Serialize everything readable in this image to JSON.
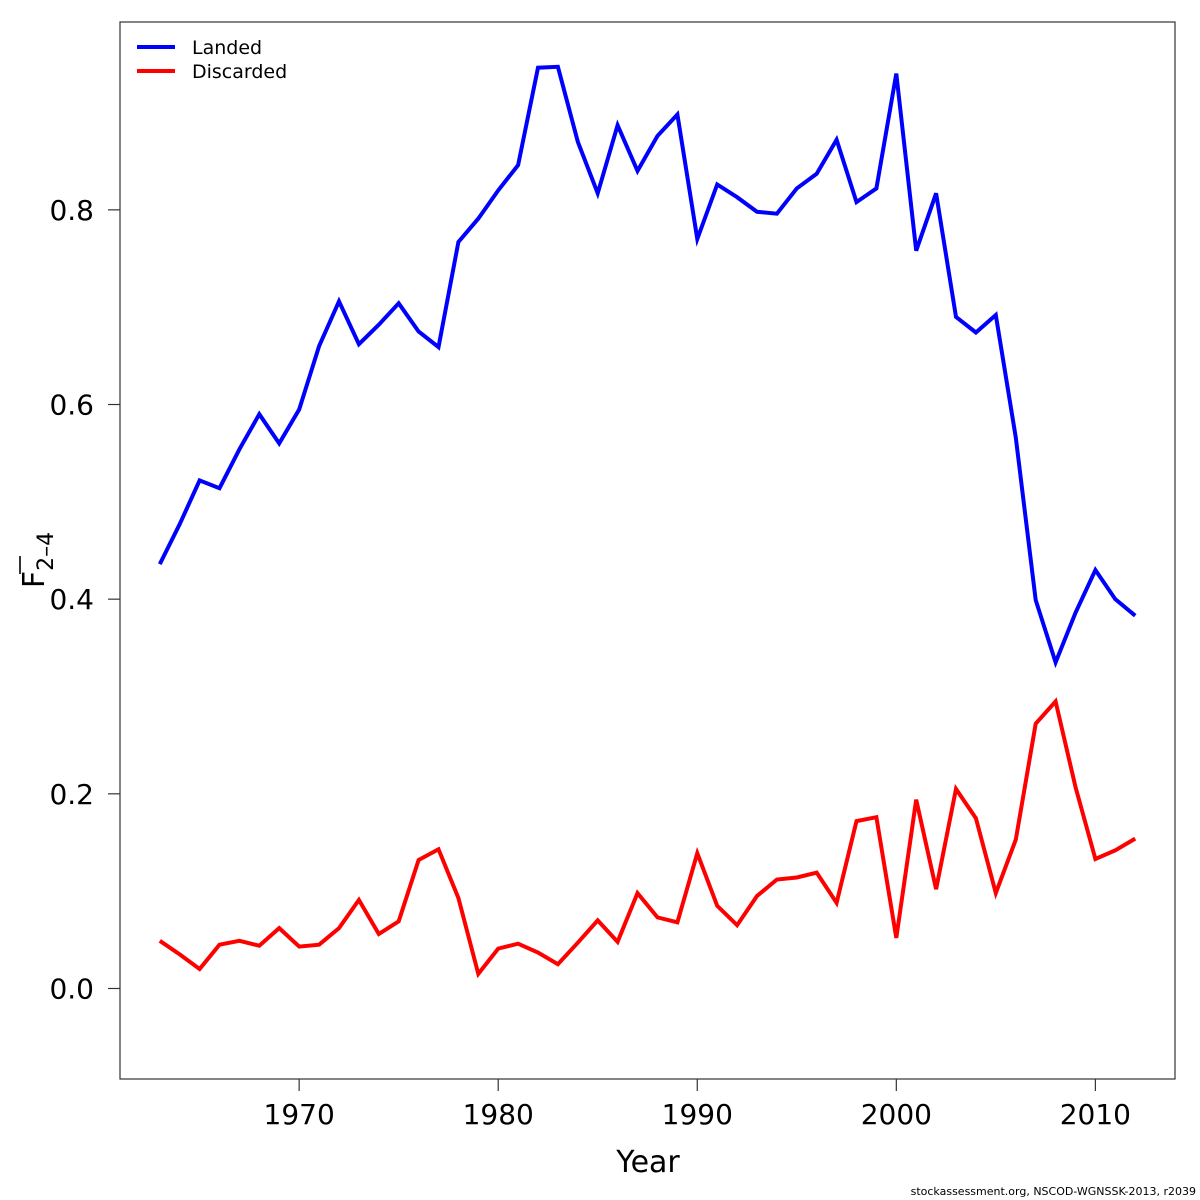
{
  "chart_data": {
    "type": "line",
    "title": "",
    "xlabel": "Year",
    "ylabel_main": "F",
    "ylabel_sub": "2–4",
    "xlim": [
      1961.0,
      2014.0
    ],
    "ylim": [
      -0.093,
      0.993
    ],
    "xticks": [
      1970,
      1980,
      1990,
      2000,
      2010
    ],
    "yticks": [
      "0.0",
      "0.2",
      "0.4",
      "0.6",
      "0.8"
    ],
    "legend_position": "top-left",
    "x": [
      1963,
      1964,
      1965,
      1966,
      1967,
      1968,
      1969,
      1970,
      1971,
      1972,
      1973,
      1974,
      1975,
      1976,
      1977,
      1978,
      1979,
      1980,
      1981,
      1982,
      1983,
      1984,
      1985,
      1986,
      1987,
      1988,
      1989,
      1990,
      1991,
      1992,
      1993,
      1994,
      1995,
      1996,
      1997,
      1998,
      1999,
      2000,
      2001,
      2002,
      2003,
      2004,
      2005,
      2006,
      2007,
      2008,
      2009,
      2010,
      2011,
      2012
    ],
    "series": [
      {
        "name": "Landed",
        "color": "#0000ff",
        "values": [
          0.436,
          0.477,
          0.522,
          0.514,
          0.554,
          0.59,
          0.56,
          0.595,
          0.66,
          0.706,
          0.662,
          0.682,
          0.704,
          0.675,
          0.659,
          0.767,
          0.791,
          0.82,
          0.846,
          0.946,
          0.947,
          0.87,
          0.817,
          0.887,
          0.84,
          0.876,
          0.898,
          0.77,
          0.826,
          0.813,
          0.798,
          0.796,
          0.822,
          0.837,
          0.872,
          0.808,
          0.822,
          0.94,
          0.758,
          0.817,
          0.69,
          0.674,
          0.692,
          0.566,
          0.399,
          0.335,
          0.386,
          0.43,
          0.4,
          0.383
        ]
      },
      {
        "name": "Discarded",
        "color": "#ff0000",
        "values": [
          0.049,
          0.035,
          0.02,
          0.045,
          0.049,
          0.044,
          0.062,
          0.043,
          0.045,
          0.062,
          0.091,
          0.056,
          0.069,
          0.132,
          0.143,
          0.093,
          0.015,
          0.041,
          0.046,
          0.037,
          0.025,
          0.047,
          0.07,
          0.048,
          0.098,
          0.073,
          0.068,
          0.139,
          0.085,
          0.065,
          0.095,
          0.112,
          0.114,
          0.119,
          0.088,
          0.172,
          0.176,
          0.052,
          0.194,
          0.102,
          0.205,
          0.175,
          0.098,
          0.153,
          0.272,
          0.295,
          0.207,
          0.133,
          0.142,
          0.154
        ]
      }
    ],
    "credit": "stockassessment.org, NSCOD-WGNSSK-2013, r2039"
  }
}
